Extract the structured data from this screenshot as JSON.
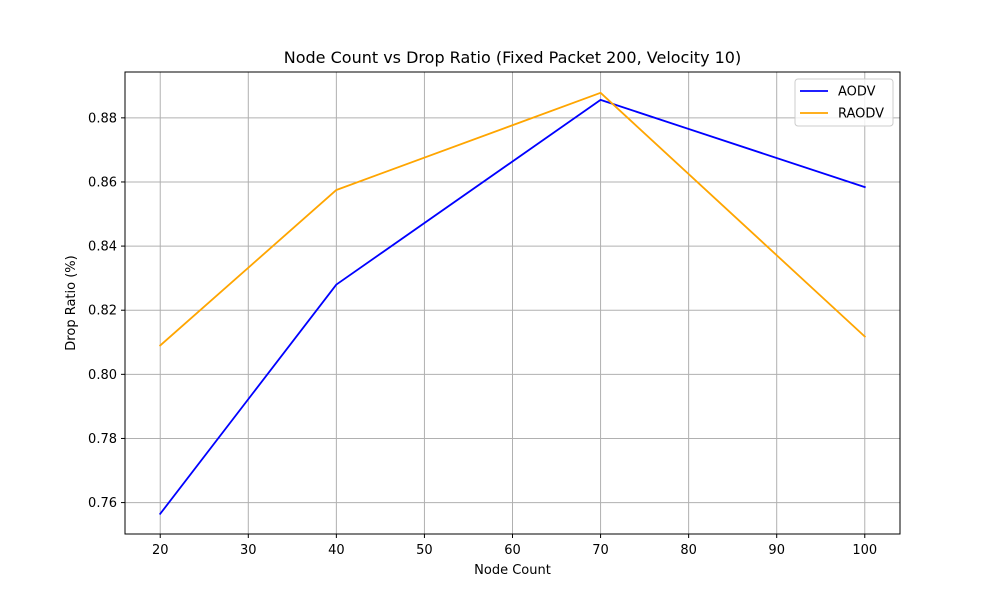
{
  "chart_data": {
    "type": "line",
    "title": "Node Count vs Drop Ratio (Fixed Packet 200, Velocity 10)",
    "xlabel": "Node Count",
    "ylabel": "Drop Ratio (%)",
    "x": [
      20,
      40,
      70,
      100
    ],
    "xlim": [
      16,
      104
    ],
    "ylim": [
      0.7502,
      0.8943
    ],
    "xticks": [
      20,
      30,
      40,
      50,
      60,
      70,
      80,
      90,
      100
    ],
    "xtick_labels": [
      "20",
      "30",
      "40",
      "50",
      "60",
      "70",
      "80",
      "90",
      "100"
    ],
    "yticks": [
      0.76,
      0.78,
      0.8,
      0.82,
      0.84,
      0.86,
      0.88
    ],
    "ytick_labels": [
      "0.76",
      "0.78",
      "0.80",
      "0.82",
      "0.84",
      "0.86",
      "0.88"
    ],
    "grid": true,
    "legend_position": "top-right",
    "series": [
      {
        "name": "AODV",
        "color": "#0000ff",
        "values": [
          0.7565,
          0.828,
          0.8856,
          0.8584
        ]
      },
      {
        "name": "RAODV",
        "color": "#ffa500",
        "values": [
          0.809,
          0.8575,
          0.8878,
          0.8118
        ]
      }
    ]
  }
}
